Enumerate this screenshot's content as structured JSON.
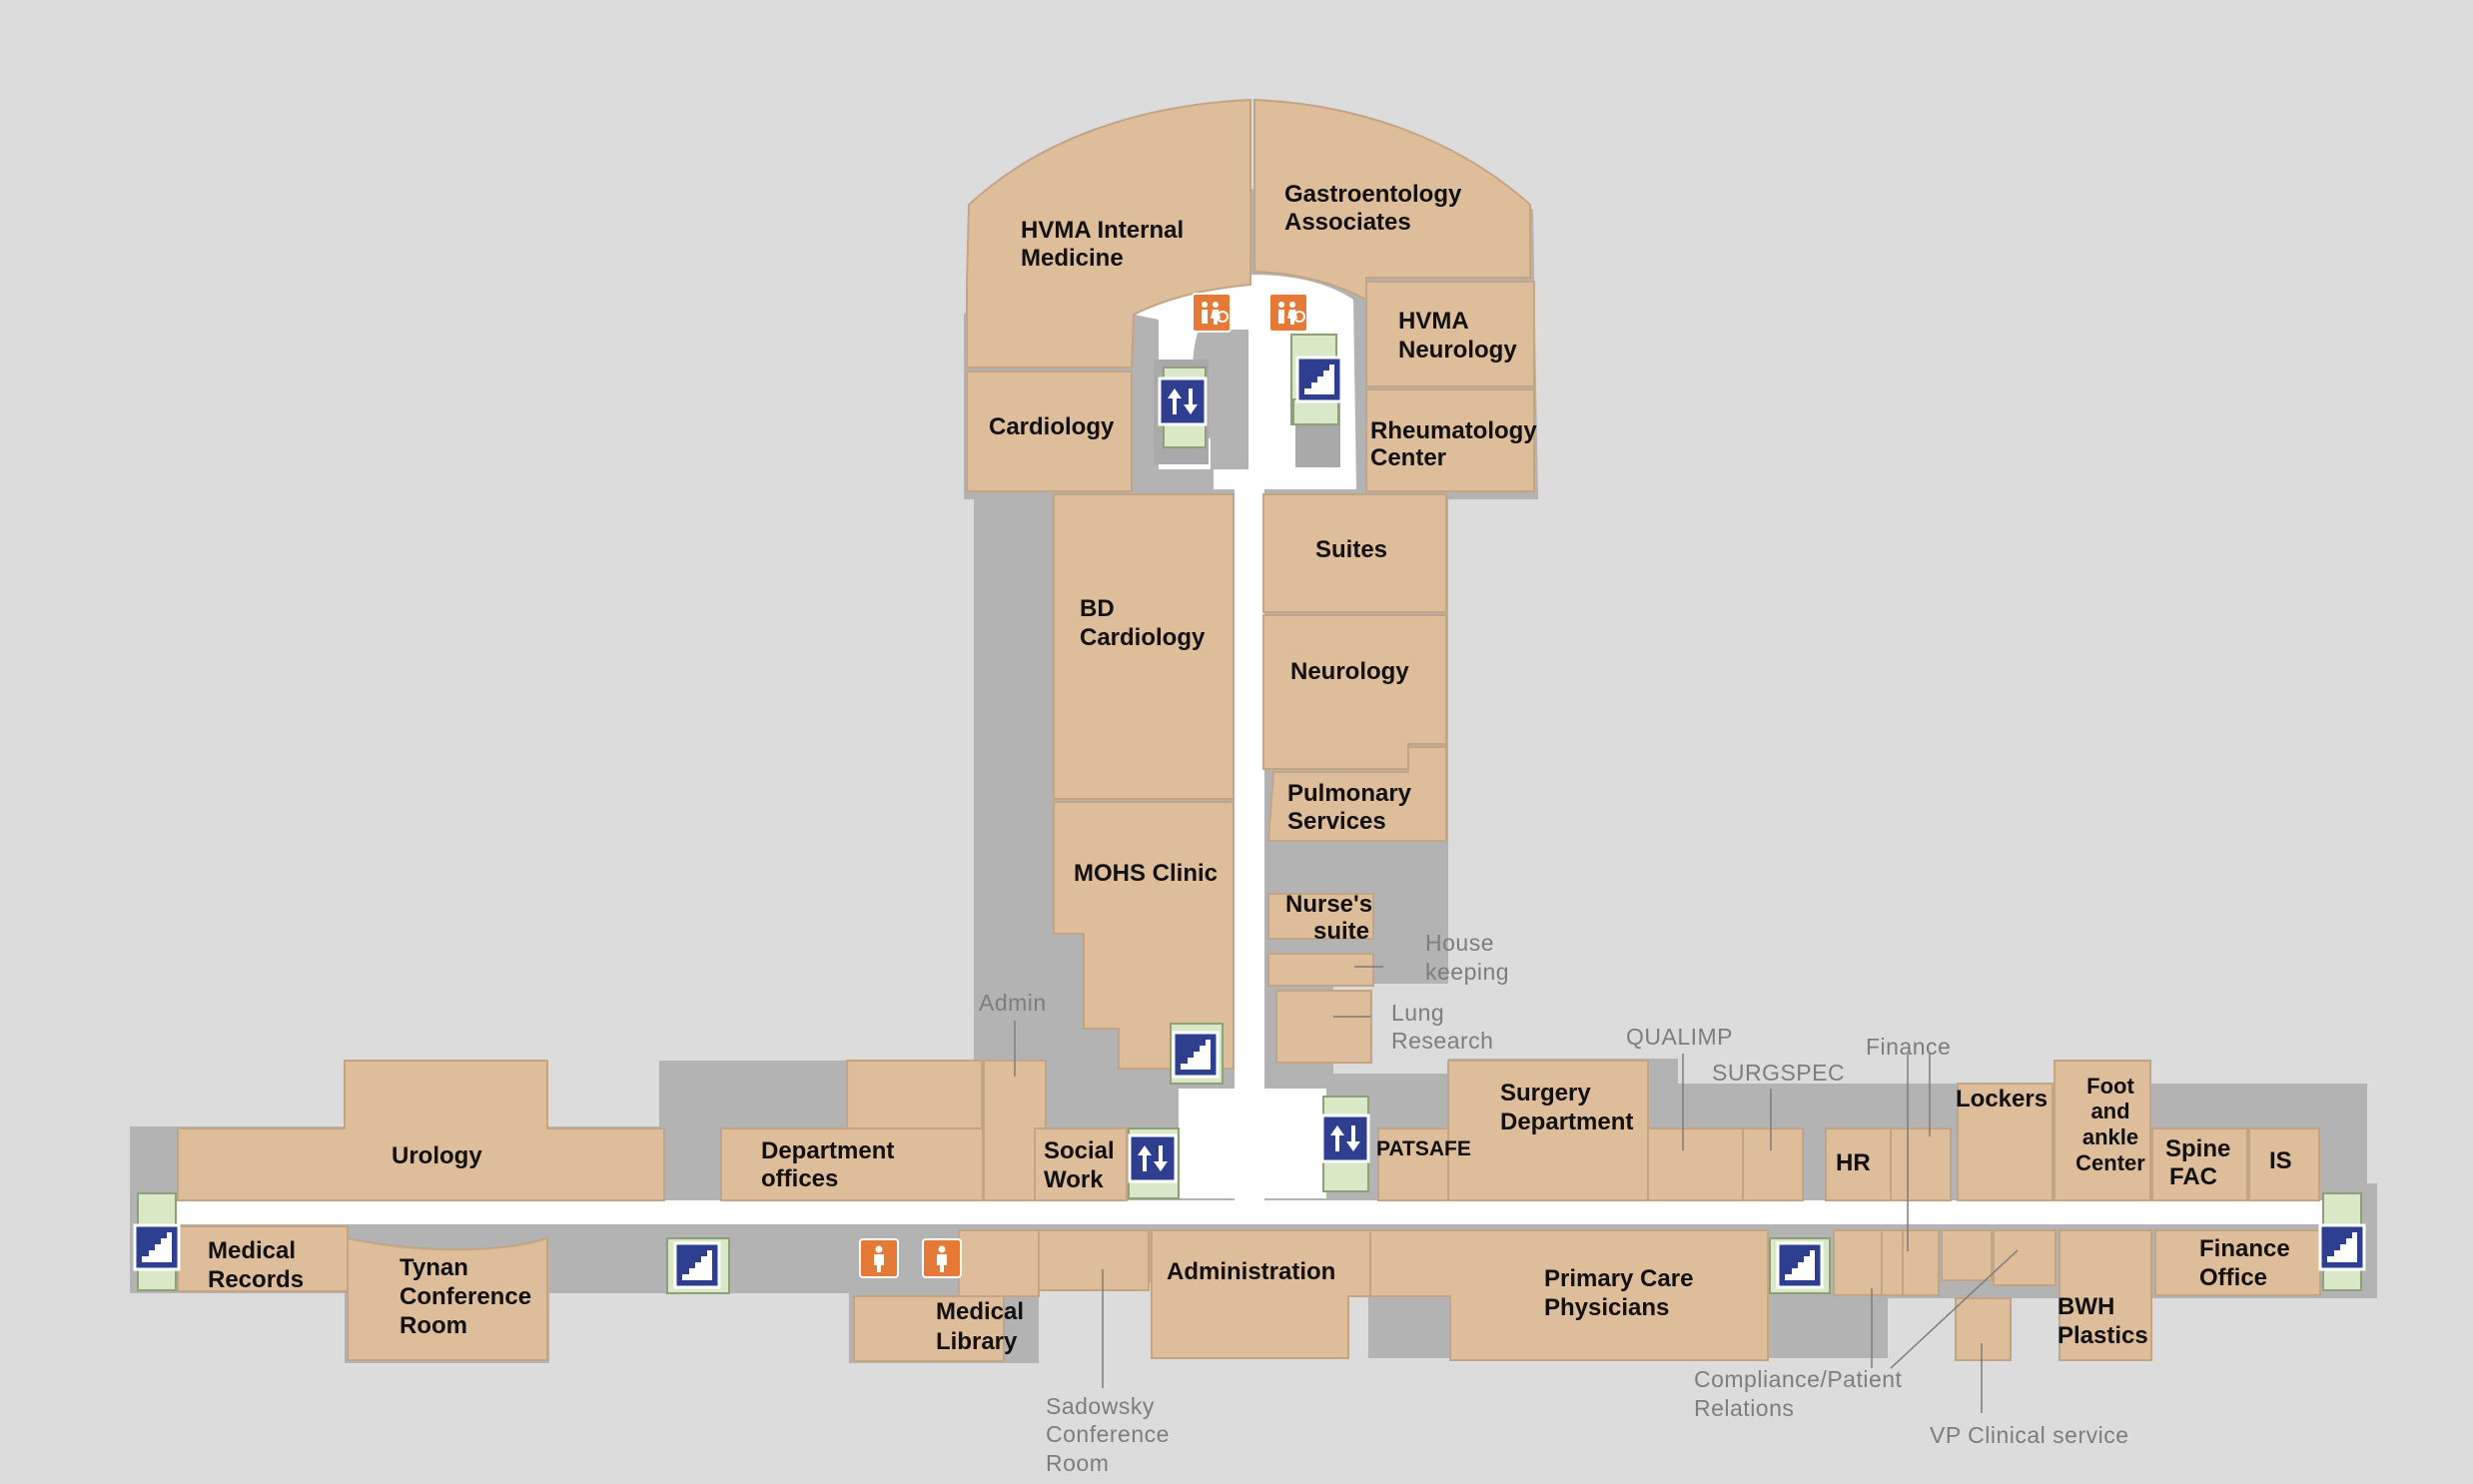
{
  "colors": {
    "background": "#dcdcdc",
    "room": "#ddbd9a",
    "room_edge": "#c2a585",
    "wall": "#b3b3b3",
    "service": "#a9a9a9",
    "corridor": "#ffffff",
    "stair": "#2e3f8f",
    "elevator": "#2e3f8f",
    "restroom": "#e47a35",
    "vestibule": "#d9e8c6",
    "annotation": "#7d7d7d"
  },
  "rooms": {
    "hvma_internal_medicine": [
      "HVMA Internal",
      "Medicine"
    ],
    "gastroenterology": [
      "Gastroentology",
      "Associates"
    ],
    "hvma_neurology": [
      "HVMA",
      "Neurology"
    ],
    "rheumatology": [
      "Rheumatology",
      "Center"
    ],
    "cardiology": [
      "Cardiology"
    ],
    "bd_cardiology": [
      "BD",
      "Cardiology"
    ],
    "suites": [
      "Suites"
    ],
    "neurology": [
      "Neurology"
    ],
    "pulmonary": [
      "Pulmonary",
      "Services"
    ],
    "mohs": [
      "MOHS Clinic"
    ],
    "nurses_suite": [
      "Nurse's",
      "suite"
    ],
    "urology": [
      "Urology"
    ],
    "department_offices": [
      "Department",
      "offices"
    ],
    "social_work": [
      "Social",
      "Work"
    ],
    "patsafe": [
      "PATSAFE"
    ],
    "surgery": [
      "Surgery",
      "Department"
    ],
    "hr": [
      "HR"
    ],
    "lockers": [
      "Lockers"
    ],
    "foot_ankle": [
      "Foot",
      "and",
      "ankle",
      "Center"
    ],
    "spine": [
      "Spine",
      "FAC"
    ],
    "is": [
      "IS"
    ],
    "medical_records": [
      "Medical",
      "Records"
    ],
    "tynan": [
      "Tynan",
      "Conference",
      "Room"
    ],
    "medical_library": [
      "Medical",
      "Library"
    ],
    "administration": [
      "Administration"
    ],
    "primary_care": [
      "Primary Care",
      "Physicians"
    ],
    "bwh_plastics": [
      "BWH",
      "Plastics"
    ],
    "finance_office": [
      "Finance",
      "Office"
    ]
  },
  "annotations": {
    "admin": [
      "Admin"
    ],
    "housekeeping": [
      "House",
      "keeping"
    ],
    "lung_research": [
      "Lung",
      "Research"
    ],
    "qualimp": [
      "QUALIMP"
    ],
    "surgspec": [
      "SURGSPEC"
    ],
    "finance": [
      "Finance"
    ],
    "sadowsky": [
      "Sadowsky",
      "Conference",
      "Room"
    ],
    "compliance": [
      "Compliance/Patient",
      "Relations"
    ],
    "vp_clinical": [
      "VP Clinical service"
    ]
  },
  "icons": {
    "stair": "stair-icon",
    "elevator": "elevator-icon",
    "restroom_accessible": "accessible-restroom-icon",
    "restroom": "restroom-icon"
  }
}
